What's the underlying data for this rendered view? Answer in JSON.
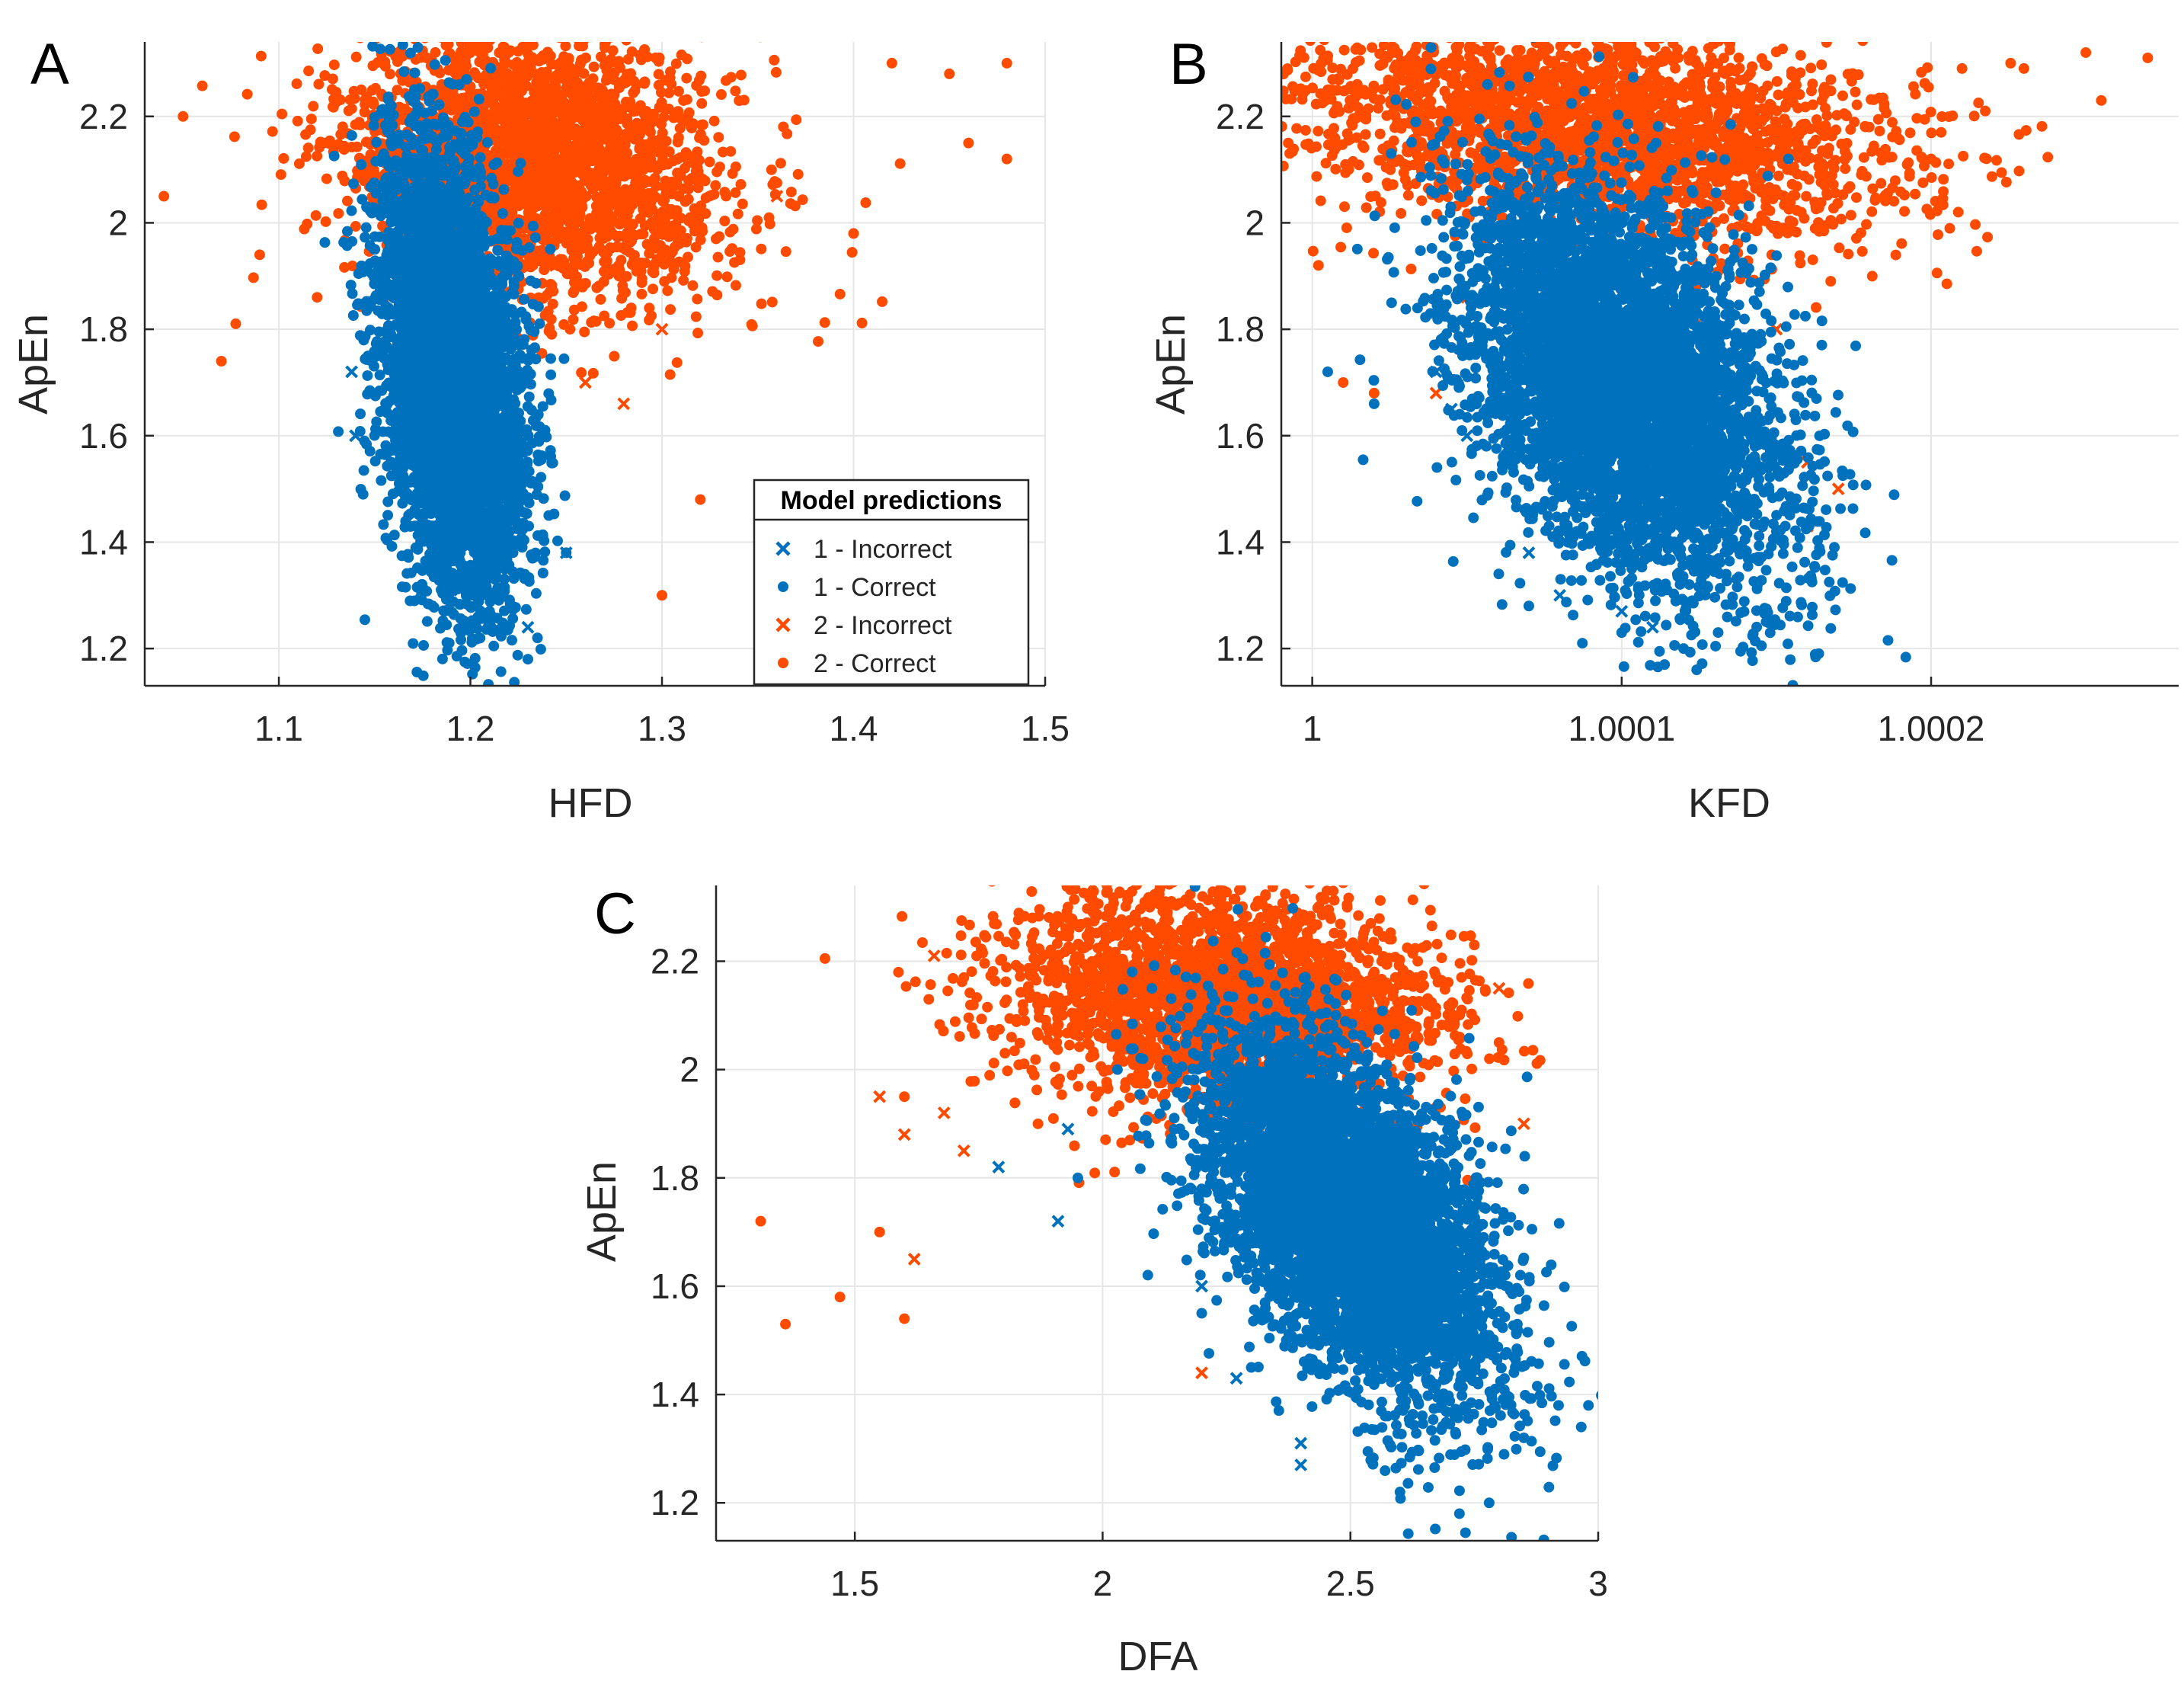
{
  "colors": {
    "class1": "#0072bd",
    "class2": "#ff4b00"
  },
  "legend": {
    "title": "Model predictions",
    "placement": "bottom-right of panel A",
    "entries": [
      {
        "label": "1 - Incorrect",
        "color": "#0072bd",
        "marker": "cross-icon"
      },
      {
        "label": "1 - Correct",
        "color": "#0072bd",
        "marker": "dot-icon"
      },
      {
        "label": "2 - Incorrect",
        "color": "#ff4b00",
        "marker": "cross-icon"
      },
      {
        "label": "2 - Correct",
        "color": "#ff4b00",
        "marker": "dot-icon"
      }
    ]
  },
  "chart_data": [
    {
      "panel": "A",
      "type": "scatter",
      "xlabel": "HFD",
      "ylabel": "ApEn",
      "xlim": [
        1.03,
        1.5
      ],
      "ylim": [
        1.13,
        2.34
      ],
      "xticks": [
        1.1,
        1.2,
        1.3,
        1.4,
        1.5
      ],
      "yticks": [
        1.2,
        1.4,
        1.6,
        1.8,
        2.0,
        2.2
      ],
      "xtick_labels": [
        "1.1",
        "1.2",
        "1.3",
        "1.4",
        "1.5"
      ],
      "ytick_labels": [
        "1.2",
        "1.4",
        "1.6",
        "1.8",
        "2",
        "2.2"
      ],
      "grid": true,
      "series": [
        {
          "name": "1 - Correct",
          "region": {
            "cx": 1.19,
            "cy": 1.72,
            "sx": 0.018,
            "sy": 0.2,
            "rho": -0.3
          },
          "outliers": [
            [
              1.21,
              1.27
            ],
            [
              1.22,
              1.24
            ],
            [
              1.235,
              1.22
            ],
            [
              1.25,
              1.38
            ],
            [
              1.2,
              1.3
            ],
            [
              1.23,
              1.18
            ]
          ]
        },
        {
          "name": "1 - Incorrect",
          "points": [
            [
              1.138,
              1.72
            ],
            [
              1.14,
              1.6
            ],
            [
              1.19,
              1.31
            ],
            [
              1.23,
              1.24
            ],
            [
              1.25,
              1.38
            ]
          ]
        },
        {
          "name": "2 - Correct",
          "region": {
            "cx": 1.235,
            "cy": 2.12,
            "sx": 0.05,
            "sy": 0.13,
            "rho": -0.2
          },
          "outliers": [
            [
              1.04,
              2.05
            ],
            [
              1.05,
              2.2
            ],
            [
              1.07,
              1.74
            ],
            [
              1.09,
              1.94
            ],
            [
              1.12,
              1.86
            ],
            [
              1.3,
              1.3
            ],
            [
              1.32,
              1.48
            ],
            [
              1.42,
              2.3
            ],
            [
              1.45,
              2.28
            ],
            [
              1.46,
              2.15
            ],
            [
              1.48,
              2.12
            ],
            [
              1.48,
              2.3
            ],
            [
              1.4,
              1.98
            ]
          ]
        },
        {
          "name": "2 - Incorrect",
          "points": [
            [
              1.24,
              1.92
            ],
            [
              1.26,
              1.7
            ],
            [
              1.28,
              1.66
            ],
            [
              1.3,
              1.8
            ],
            [
              1.36,
              2.05
            ],
            [
              1.2,
              2.2
            ],
            [
              1.25,
              2.1
            ]
          ]
        }
      ]
    },
    {
      "panel": "B",
      "type": "scatter",
      "xlabel": "KFD",
      "ylabel": "ApEn",
      "xlim": [
        0.99999,
        1.00028
      ],
      "ylim": [
        1.13,
        2.34
      ],
      "xticks": [
        1.0,
        1.0001,
        1.0002
      ],
      "yticks": [
        1.2,
        1.4,
        1.6,
        1.8,
        2.0,
        2.2
      ],
      "xtick_labels": [
        "1",
        "1.0001",
        "1.0002"
      ],
      "ytick_labels": [
        "1.2",
        "1.4",
        "1.6",
        "1.8",
        "2",
        "2.2"
      ],
      "grid": true,
      "series": [
        {
          "name": "1 - Correct",
          "region": {
            "cx": 1.0001,
            "cy": 1.7,
            "sx": 2.6e-05,
            "sy": 0.19,
            "rho": -0.45
          },
          "outliers": [
            [
              1.000005,
              1.72
            ],
            [
              1.00002,
              1.66
            ],
            [
              1.00007,
              1.28
            ],
            [
              1.0001,
              1.23
            ],
            [
              1.00012,
              1.2
            ],
            [
              1.00015,
              1.42
            ]
          ]
        },
        {
          "name": "1 - Incorrect",
          "points": [
            [
              1.00004,
              1.72
            ],
            [
              1.000045,
              1.65
            ],
            [
              1.00005,
              1.6
            ],
            [
              1.00006,
              1.86
            ],
            [
              1.00007,
              1.38
            ],
            [
              1.00008,
              1.3
            ],
            [
              1.0001,
              1.27
            ],
            [
              1.00011,
              1.24
            ]
          ]
        },
        {
          "name": "2 - Correct",
          "region": {
            "cx": 1.00009,
            "cy": 2.18,
            "sx": 5e-05,
            "sy": 0.1,
            "rho": -0.3
          },
          "outliers": [
            [
              1.000002,
              1.92
            ],
            [
              1.000005,
              2.25
            ],
            [
              1.00001,
              1.7
            ],
            [
              1.00002,
              1.68
            ],
            [
              1.00021,
              2.29
            ],
            [
              1.00023,
              2.29
            ],
            [
              1.00025,
              2.32
            ],
            [
              1.000255,
              2.23
            ],
            [
              1.00027,
              2.31
            ],
            [
              1.0002,
              2.12
            ],
            [
              1.00018,
              2.18
            ]
          ]
        },
        {
          "name": "2 - Incorrect",
          "points": [
            [
              1.00004,
              1.68
            ],
            [
              1.00005,
              1.86
            ],
            [
              1.00015,
              1.8
            ],
            [
              1.00016,
              1.55
            ],
            [
              1.00017,
              1.5
            ],
            [
              1.00014,
              1.9
            ],
            [
              1.00016,
              1.43
            ]
          ]
        }
      ]
    },
    {
      "panel": "C",
      "type": "scatter",
      "xlabel": "DFA",
      "ylabel": "ApEn",
      "xlim": [
        1.22,
        3.0
      ],
      "ylim": [
        1.13,
        2.34
      ],
      "xticks": [
        1.5,
        2.0,
        2.5,
        3.0
      ],
      "yticks": [
        1.2,
        1.4,
        1.6,
        1.8,
        2.0,
        2.2
      ],
      "xtick_labels": [
        "1.5",
        "2",
        "2.5",
        "3"
      ],
      "ytick_labels": [
        "1.2",
        "1.4",
        "1.6",
        "1.8",
        "2",
        "2.2"
      ],
      "grid": true,
      "series": [
        {
          "name": "1 - Correct",
          "region": {
            "cx": 2.5,
            "cy": 1.73,
            "sx": 0.15,
            "sy": 0.17,
            "rho": -0.55
          },
          "outliers": [
            [
              2.6,
              1.22
            ],
            [
              2.72,
              1.18
            ],
            [
              2.78,
              1.2
            ],
            [
              2.85,
              1.32
            ],
            [
              2.92,
              1.38
            ],
            [
              2.2,
              1.55
            ],
            [
              2.3,
              1.45
            ],
            [
              1.95,
              1.8
            ]
          ]
        },
        {
          "name": "1 - Incorrect",
          "points": [
            [
              2.4,
              1.31
            ],
            [
              2.4,
              1.27
            ],
            [
              2.27,
              1.43
            ],
            [
              1.93,
              1.89
            ],
            [
              1.91,
              1.72
            ],
            [
              1.79,
              1.82
            ],
            [
              2.2,
              1.6
            ]
          ]
        },
        {
          "name": "2 - Correct",
          "region": {
            "cx": 2.25,
            "cy": 2.13,
            "sx": 0.22,
            "sy": 0.1,
            "rho": -0.1
          },
          "outliers": [
            [
              1.31,
              1.72
            ],
            [
              1.36,
              1.53
            ],
            [
              1.47,
              1.58
            ],
            [
              1.6,
              1.54
            ],
            [
              1.55,
              1.7
            ],
            [
              1.6,
              1.95
            ],
            [
              1.72,
              2.17
            ],
            [
              2.75,
              2.23
            ],
            [
              2.8,
              2.05
            ],
            [
              1.93,
              2.3
            ]
          ]
        },
        {
          "name": "2 - Incorrect",
          "points": [
            [
              1.55,
              1.95
            ],
            [
              1.6,
              1.88
            ],
            [
              1.62,
              1.65
            ],
            [
              1.68,
              1.92
            ],
            [
              1.72,
              1.85
            ],
            [
              2.2,
              1.44
            ],
            [
              2.85,
              1.9
            ],
            [
              2.8,
              2.15
            ],
            [
              1.66,
              2.21
            ]
          ]
        }
      ]
    }
  ]
}
